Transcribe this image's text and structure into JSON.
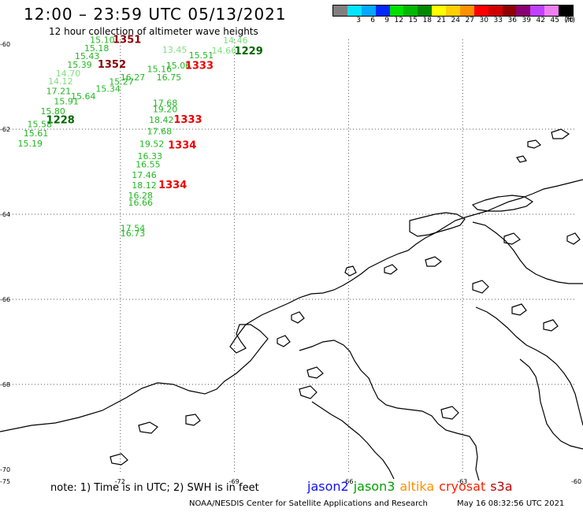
{
  "header": {
    "title": "12:00 – 23:59 UTC 05/13/2021",
    "subtitle": "12 hour collection of altimeter wave heights"
  },
  "scale": {
    "colors": [
      "#7f7f7f",
      "#00e5ff",
      "#00a8ff",
      "#0028ff",
      "#00e000",
      "#00b800",
      "#008800",
      "#ffff00",
      "#ffd000",
      "#ff9000",
      "#ff0000",
      "#d00000",
      "#900000",
      "#8b0070",
      "#c040ff",
      "#f080f0",
      "#000000"
    ],
    "labels": [
      "3",
      "6",
      "9",
      "12",
      "15",
      "18",
      "21",
      "24",
      "27",
      "30",
      "33",
      "36",
      "39",
      "42",
      "45",
      "70"
    ],
    "unit": "(ft)"
  },
  "axes": {
    "lat_labels": [
      "-60",
      "-62",
      "-64",
      "-66",
      "-68",
      "-70"
    ],
    "lon_labels": [
      "-75",
      "-72",
      "-69",
      "-66",
      "-63",
      "-60"
    ]
  },
  "observations": [
    {
      "t": "15.10",
      "lon": -72.8,
      "lat": -59.97,
      "c": "#22b822"
    },
    {
      "t": "1351",
      "lon": -72.2,
      "lat": -59.97,
      "c": "#8b0000"
    },
    {
      "t": "15.18",
      "lon": -72.95,
      "lat": -60.17,
      "c": "#22b822"
    },
    {
      "t": "15.43",
      "lon": -73.2,
      "lat": -60.35,
      "c": "#22b822"
    },
    {
      "t": "15.39",
      "lon": -73.4,
      "lat": -60.56,
      "c": "#22b822"
    },
    {
      "t": "1352",
      "lon": -72.6,
      "lat": -60.56,
      "c": "#8b0000"
    },
    {
      "t": "14.70",
      "lon": -73.7,
      "lat": -60.76,
      "c": "#7fe07f"
    },
    {
      "t": "14.12",
      "lon": -73.9,
      "lat": -60.94,
      "c": "#7fe07f"
    },
    {
      "t": "17.21",
      "lon": -73.95,
      "lat": -61.18,
      "c": "#22b822"
    },
    {
      "t": "15.64",
      "lon": -73.3,
      "lat": -61.3,
      "c": "#22b822"
    },
    {
      "t": "15.91",
      "lon": -73.75,
      "lat": -61.42,
      "c": "#22b822"
    },
    {
      "t": "15.80",
      "lon": -74.1,
      "lat": -61.65,
      "c": "#22b822"
    },
    {
      "t": "1228",
      "lon": -73.95,
      "lat": -61.86,
      "c": "#006600"
    },
    {
      "t": "15.58",
      "lon": -74.45,
      "lat": -61.95,
      "c": "#22b822"
    },
    {
      "t": "15.61",
      "lon": -74.55,
      "lat": -62.17,
      "c": "#22b822"
    },
    {
      "t": "15.19",
      "lon": -74.7,
      "lat": -62.41,
      "c": "#22b822"
    },
    {
      "t": "15.34",
      "lon": -72.65,
      "lat": -61.12,
      "c": "#22b822"
    },
    {
      "t": "15.27",
      "lon": -72.3,
      "lat": -60.95,
      "c": "#22b822"
    },
    {
      "t": "16.27",
      "lon": -72.0,
      "lat": -60.85,
      "c": "#22b822"
    },
    {
      "t": "13.45",
      "lon": -70.9,
      "lat": -60.2,
      "c": "#7fe07f"
    },
    {
      "t": "15.51",
      "lon": -70.2,
      "lat": -60.33,
      "c": "#22b822"
    },
    {
      "t": "14.66",
      "lon": -69.6,
      "lat": -60.22,
      "c": "#7fe07f"
    },
    {
      "t": "14.46",
      "lon": -69.3,
      "lat": -59.98,
      "c": "#7fe07f"
    },
    {
      "t": "1229",
      "lon": -69.0,
      "lat": -60.24,
      "c": "#006600"
    },
    {
      "t": "15.06",
      "lon": -70.8,
      "lat": -60.57,
      "c": "#22b822"
    },
    {
      "t": "15.16",
      "lon": -71.3,
      "lat": -60.66,
      "c": "#22b822"
    },
    {
      "t": "1333",
      "lon": -70.3,
      "lat": -60.58,
      "c": "#ee0000"
    },
    {
      "t": "16.75",
      "lon": -71.05,
      "lat": -60.85,
      "c": "#22b822"
    },
    {
      "t": "17.68",
      "lon": -71.15,
      "lat": -61.45,
      "c": "#22b822"
    },
    {
      "t": "19.20",
      "lon": -71.15,
      "lat": -61.6,
      "c": "#22b822"
    },
    {
      "t": "18.42",
      "lon": -71.25,
      "lat": -61.85,
      "c": "#22b822"
    },
    {
      "t": "1333",
      "lon": -70.6,
      "lat": -61.85,
      "c": "#ee0000"
    },
    {
      "t": "17.68",
      "lon": -71.3,
      "lat": -62.12,
      "c": "#22b822"
    },
    {
      "t": "19.52",
      "lon": -71.5,
      "lat": -62.42,
      "c": "#22b822"
    },
    {
      "t": "1334",
      "lon": -70.75,
      "lat": -62.45,
      "c": "#ee0000"
    },
    {
      "t": "16.33",
      "lon": -71.55,
      "lat": -62.7,
      "c": "#22b822"
    },
    {
      "t": "16.55",
      "lon": -71.6,
      "lat": -62.9,
      "c": "#22b822"
    },
    {
      "t": "17.46",
      "lon": -71.7,
      "lat": -63.15,
      "c": "#22b822"
    },
    {
      "t": "18.12",
      "lon": -71.7,
      "lat": -63.39,
      "c": "#22b822"
    },
    {
      "t": "1334",
      "lon": -71.0,
      "lat": -63.39,
      "c": "#ee0000"
    },
    {
      "t": "16.28",
      "lon": -71.8,
      "lat": -63.63,
      "c": "#22b822"
    },
    {
      "t": "16.66",
      "lon": -71.8,
      "lat": -63.8,
      "c": "#22b822"
    },
    {
      "t": "17.54",
      "lon": -72.0,
      "lat": -64.4,
      "c": "#22b822"
    },
    {
      "t": "16.73",
      "lon": -72.0,
      "lat": -64.52,
      "c": "#22b822"
    }
  ],
  "footer": {
    "note": "note:  1) Time is in UTC;  2) SWH is in feet",
    "satellites": [
      {
        "name": "jason2",
        "color": "#1010ff"
      },
      {
        "name": "jason3",
        "color": "#00a000"
      },
      {
        "name": "altika",
        "color": "#ff9000"
      },
      {
        "name": "cryosat",
        "color": "#ff2000"
      },
      {
        "name": "s3a",
        "color": "#c00000"
      }
    ],
    "credit": "NOAA/NESDIS Center for Satellite Applications and Research",
    "timestamp": "May 16 08:32:56 UTC 2021"
  }
}
